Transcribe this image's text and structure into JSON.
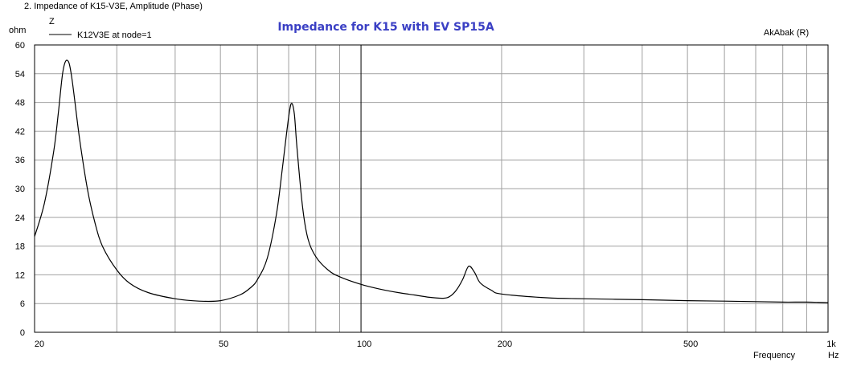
{
  "window_title": "2. Impedance of K15-V3E, Amplitude (Phase)",
  "brand": "AkAbak (R)",
  "chart_data": {
    "type": "line",
    "title": "Impedance for K15 with EV SP15A",
    "y_symbol": "Z",
    "ylabel": "ohm",
    "xlabel": "Frequency",
    "xunit": "Hz",
    "x_scale": "log",
    "xlim": [
      20,
      1000
    ],
    "ylim": [
      0,
      60
    ],
    "y_ticks": [
      0,
      6,
      12,
      18,
      24,
      30,
      36,
      42,
      48,
      54,
      60
    ],
    "x_ticks": [
      {
        "value": 20,
        "label": "20"
      },
      {
        "value": 50,
        "label": "50"
      },
      {
        "value": 100,
        "label": "100"
      },
      {
        "value": 200,
        "label": "200"
      },
      {
        "value": 500,
        "label": "500"
      },
      {
        "value": 1000,
        "label": "1k"
      }
    ],
    "x_grid": [
      20,
      30,
      40,
      50,
      60,
      70,
      80,
      90,
      100,
      200,
      300,
      400,
      500,
      600,
      700,
      800,
      900,
      1000
    ],
    "grid": true,
    "legend_position": "top-left",
    "series": [
      {
        "name": "K12V3E at node=1",
        "color": "#000000",
        "x": [
          20,
          21,
          22,
          22.5,
          23,
          23.5,
          24,
          25,
          26,
          27,
          28,
          30,
          32,
          35,
          40,
          45,
          50,
          55,
          58,
          60,
          63,
          66,
          68,
          70,
          71,
          72,
          73,
          75,
          77,
          80,
          85,
          90,
          100,
          110,
          120,
          130,
          140,
          150,
          155,
          160,
          165,
          170,
          175,
          180,
          190,
          200,
          250,
          300,
          400,
          500,
          600,
          700,
          800,
          900,
          1000
        ],
        "y": [
          20,
          27,
          38,
          46,
          54.5,
          56.8,
          53.5,
          40,
          29.5,
          22.5,
          17.8,
          13,
          10.2,
          8.3,
          7.0,
          6.5,
          6.6,
          7.8,
          9.3,
          11,
          15.5,
          25,
          35,
          45,
          47.8,
          45.5,
          38,
          26,
          19.5,
          15.8,
          13,
          11.6,
          10,
          9,
          8.3,
          7.8,
          7.3,
          7.1,
          7.5,
          8.8,
          11,
          13.8,
          12.5,
          10.3,
          8.8,
          8.0,
          7.2,
          7.0,
          6.8,
          6.6,
          6.5,
          6.4,
          6.3,
          6.3,
          6.2
        ]
      }
    ]
  }
}
